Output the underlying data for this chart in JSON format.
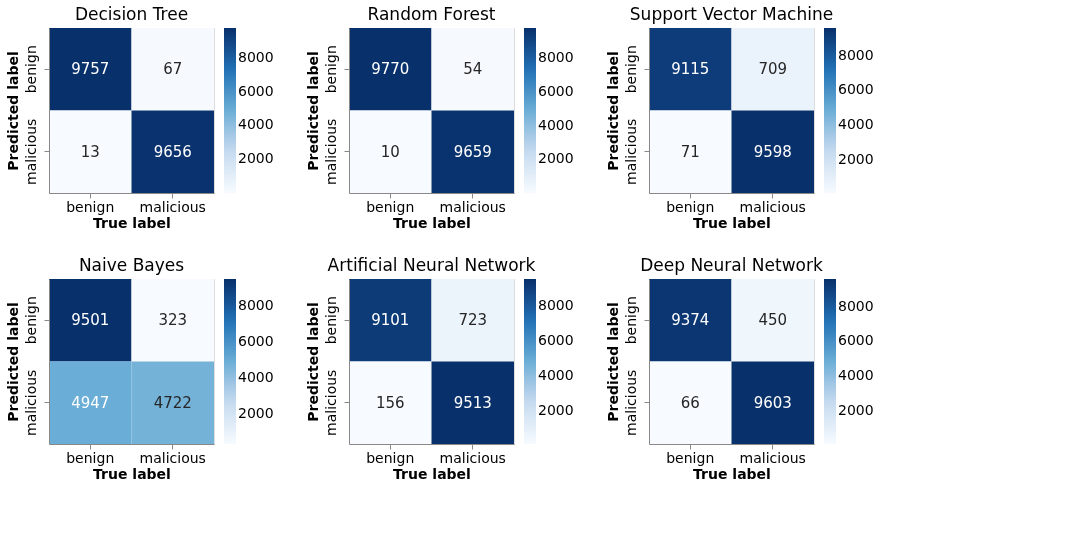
{
  "chart_data": [
    {
      "type": "heatmap",
      "title": "Decision Tree",
      "xlabel": "True label",
      "ylabel": "Predicted label",
      "categories": [
        "benign",
        "malicious"
      ],
      "y_categories": [
        "benign",
        "malicious"
      ],
      "cells": [
        [
          9757,
          67
        ],
        [
          13,
          9656
        ]
      ],
      "clim": [
        13,
        9757
      ],
      "data_labels": true,
      "cticks": [
        2000,
        4000,
        6000,
        8000
      ]
    },
    {
      "type": "heatmap",
      "title": "Random Forest",
      "xlabel": "True label",
      "ylabel": "Predicted label",
      "categories": [
        "benign",
        "malicious"
      ],
      "y_categories": [
        "benign",
        "malicious"
      ],
      "cells": [
        [
          9770,
          54
        ],
        [
          10,
          9659
        ]
      ],
      "clim": [
        10,
        9770
      ],
      "data_labels": true,
      "cticks": [
        2000,
        4000,
        6000,
        8000
      ]
    },
    {
      "type": "heatmap",
      "title": "Support Vector Machine",
      "xlabel": "True label",
      "ylabel": "Predicted label",
      "categories": [
        "benign",
        "malicious"
      ],
      "y_categories": [
        "benign",
        "malicious"
      ],
      "cells": [
        [
          9115,
          709
        ],
        [
          71,
          9598
        ]
      ],
      "clim": [
        71,
        9598
      ],
      "data_labels": true,
      "cticks": [
        2000,
        4000,
        6000,
        8000
      ]
    },
    {
      "type": "heatmap",
      "title": "Naive Bayes",
      "xlabel": "True label",
      "ylabel": "Predicted label",
      "categories": [
        "benign",
        "malicious"
      ],
      "y_categories": [
        "benign",
        "malicious"
      ],
      "cells": [
        [
          9501,
          323
        ],
        [
          4947,
          4722
        ]
      ],
      "clim": [
        323,
        9501
      ],
      "data_labels": true,
      "cticks": [
        2000,
        4000,
        6000,
        8000
      ]
    },
    {
      "type": "heatmap",
      "title": "Artificial Neural Network",
      "xlabel": "True label",
      "ylabel": "Predicted label",
      "categories": [
        "benign",
        "malicious"
      ],
      "y_categories": [
        "benign",
        "malicious"
      ],
      "cells": [
        [
          9101,
          723
        ],
        [
          156,
          9513
        ]
      ],
      "clim": [
        156,
        9513
      ],
      "data_labels": true,
      "cticks": [
        2000,
        4000,
        6000,
        8000
      ]
    },
    {
      "type": "heatmap",
      "title": "Deep Neural Network",
      "xlabel": "True label",
      "ylabel": "Predicted label",
      "categories": [
        "benign",
        "malicious"
      ],
      "y_categories": [
        "benign",
        "malicious"
      ],
      "cells": [
        [
          9374,
          450
        ],
        [
          66,
          9603
        ]
      ],
      "clim": [
        66,
        9603
      ],
      "data_labels": true,
      "cticks": [
        2000,
        4000,
        6000,
        8000
      ]
    }
  ]
}
